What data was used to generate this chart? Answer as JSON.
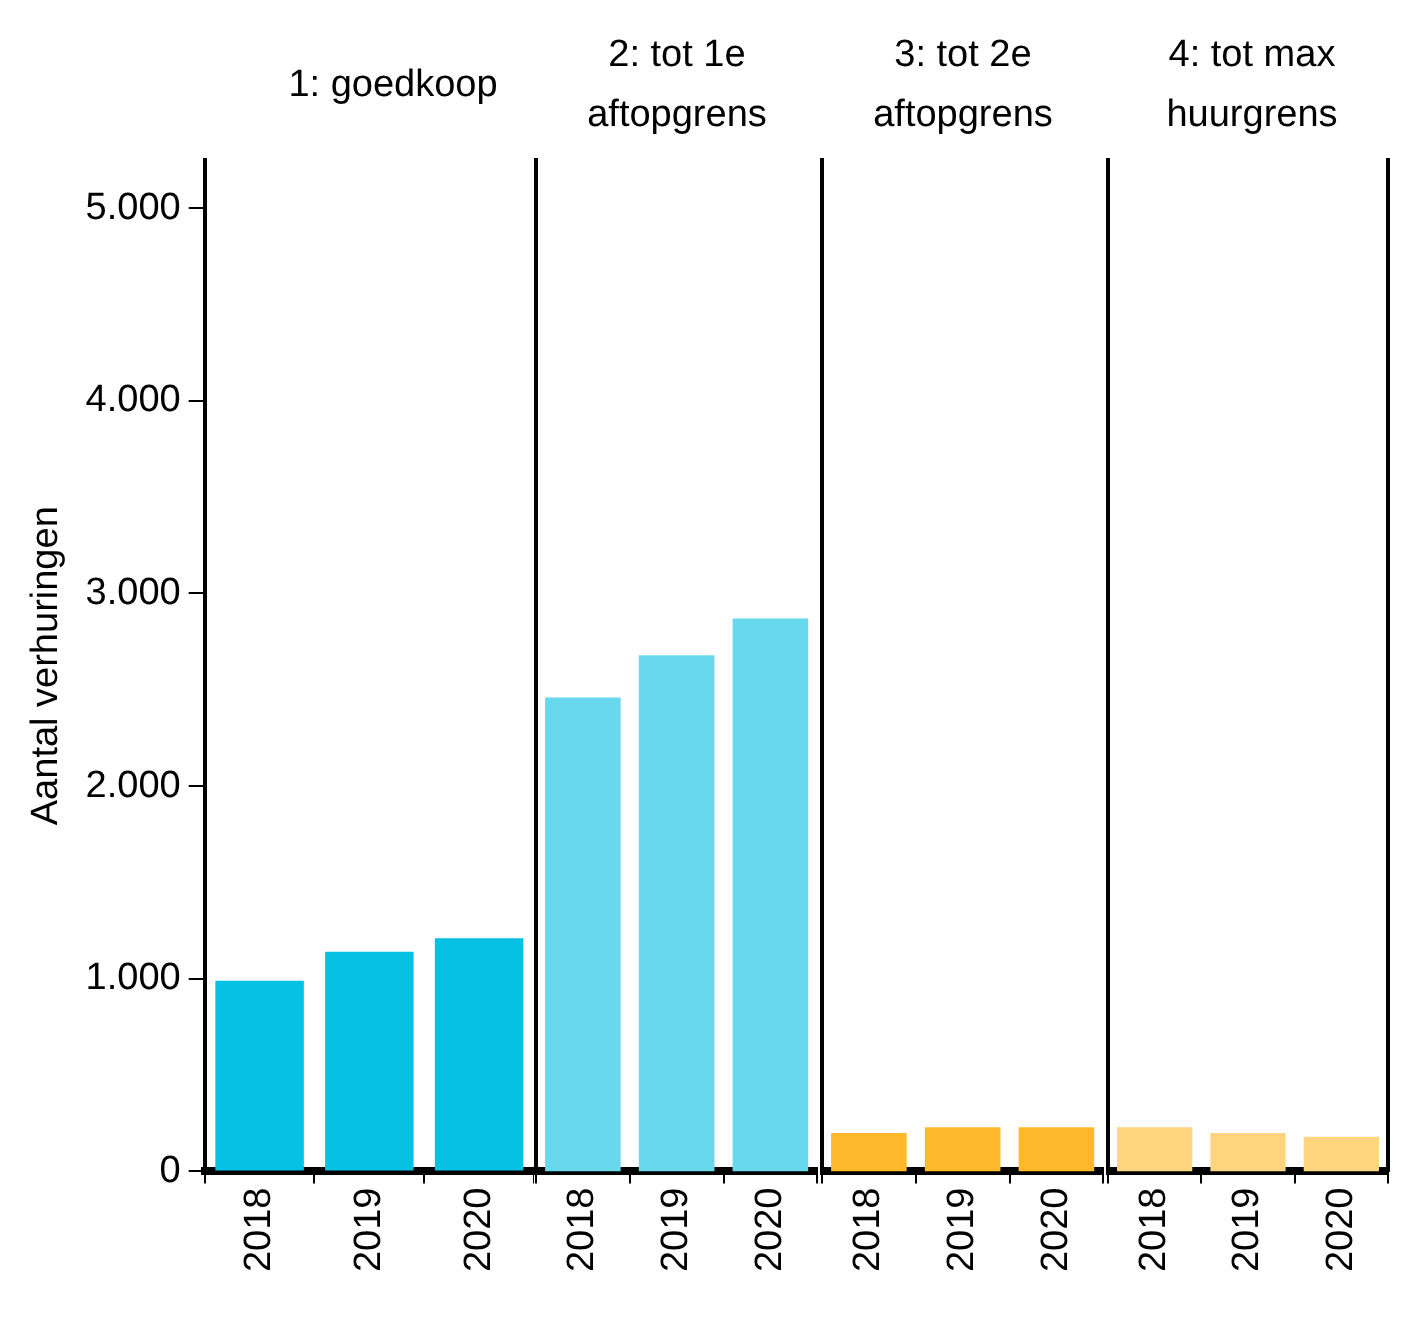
{
  "chart_data": [
    {
      "type": "bar",
      "title": "1: goedkoop",
      "ylabel": "Aantal verhuringen",
      "categories": [
        "2018",
        "2019",
        "2020"
      ],
      "values": [
        990,
        1140,
        1210
      ],
      "color": "#06c1e4",
      "ylim": [
        0,
        5250
      ],
      "yticks": [
        0,
        {
          "value": 1000,
          "label": "1.000"
        },
        {
          "value": 2000,
          "label": "2.000"
        },
        {
          "value": 3000,
          "label": "3.000"
        },
        {
          "value": 4000,
          "label": "4.000"
        },
        {
          "value": 5000,
          "label": "5.000"
        }
      ],
      "grid": false
    },
    {
      "type": "bar",
      "title": "2: tot 1e aftopgrens",
      "categories": [
        "2018",
        "2019",
        "2020"
      ],
      "values": [
        2460,
        2680,
        2870
      ],
      "color": "#68d8ec",
      "ylim": [
        0,
        5250
      ],
      "tick_labels": "x",
      "grid": false
    },
    {
      "type": "bar",
      "title": "3: tot 2e aftopgrens",
      "categories": [
        "2018",
        "2019",
        "2020"
      ],
      "values": [
        200,
        230,
        230
      ],
      "color": "#ffb829",
      "ylim": [
        0,
        5250
      ],
      "tick_labels": "x",
      "grid": false
    },
    {
      "type": "bar",
      "title": "4: tot max huurgrens",
      "categories": [
        "2018",
        "2019",
        "2020"
      ],
      "values": [
        230,
        200,
        180
      ],
      "color": "#fed47f",
      "ylim": [
        0,
        5250
      ],
      "tick_labels": "x",
      "grid": false
    }
  ]
}
